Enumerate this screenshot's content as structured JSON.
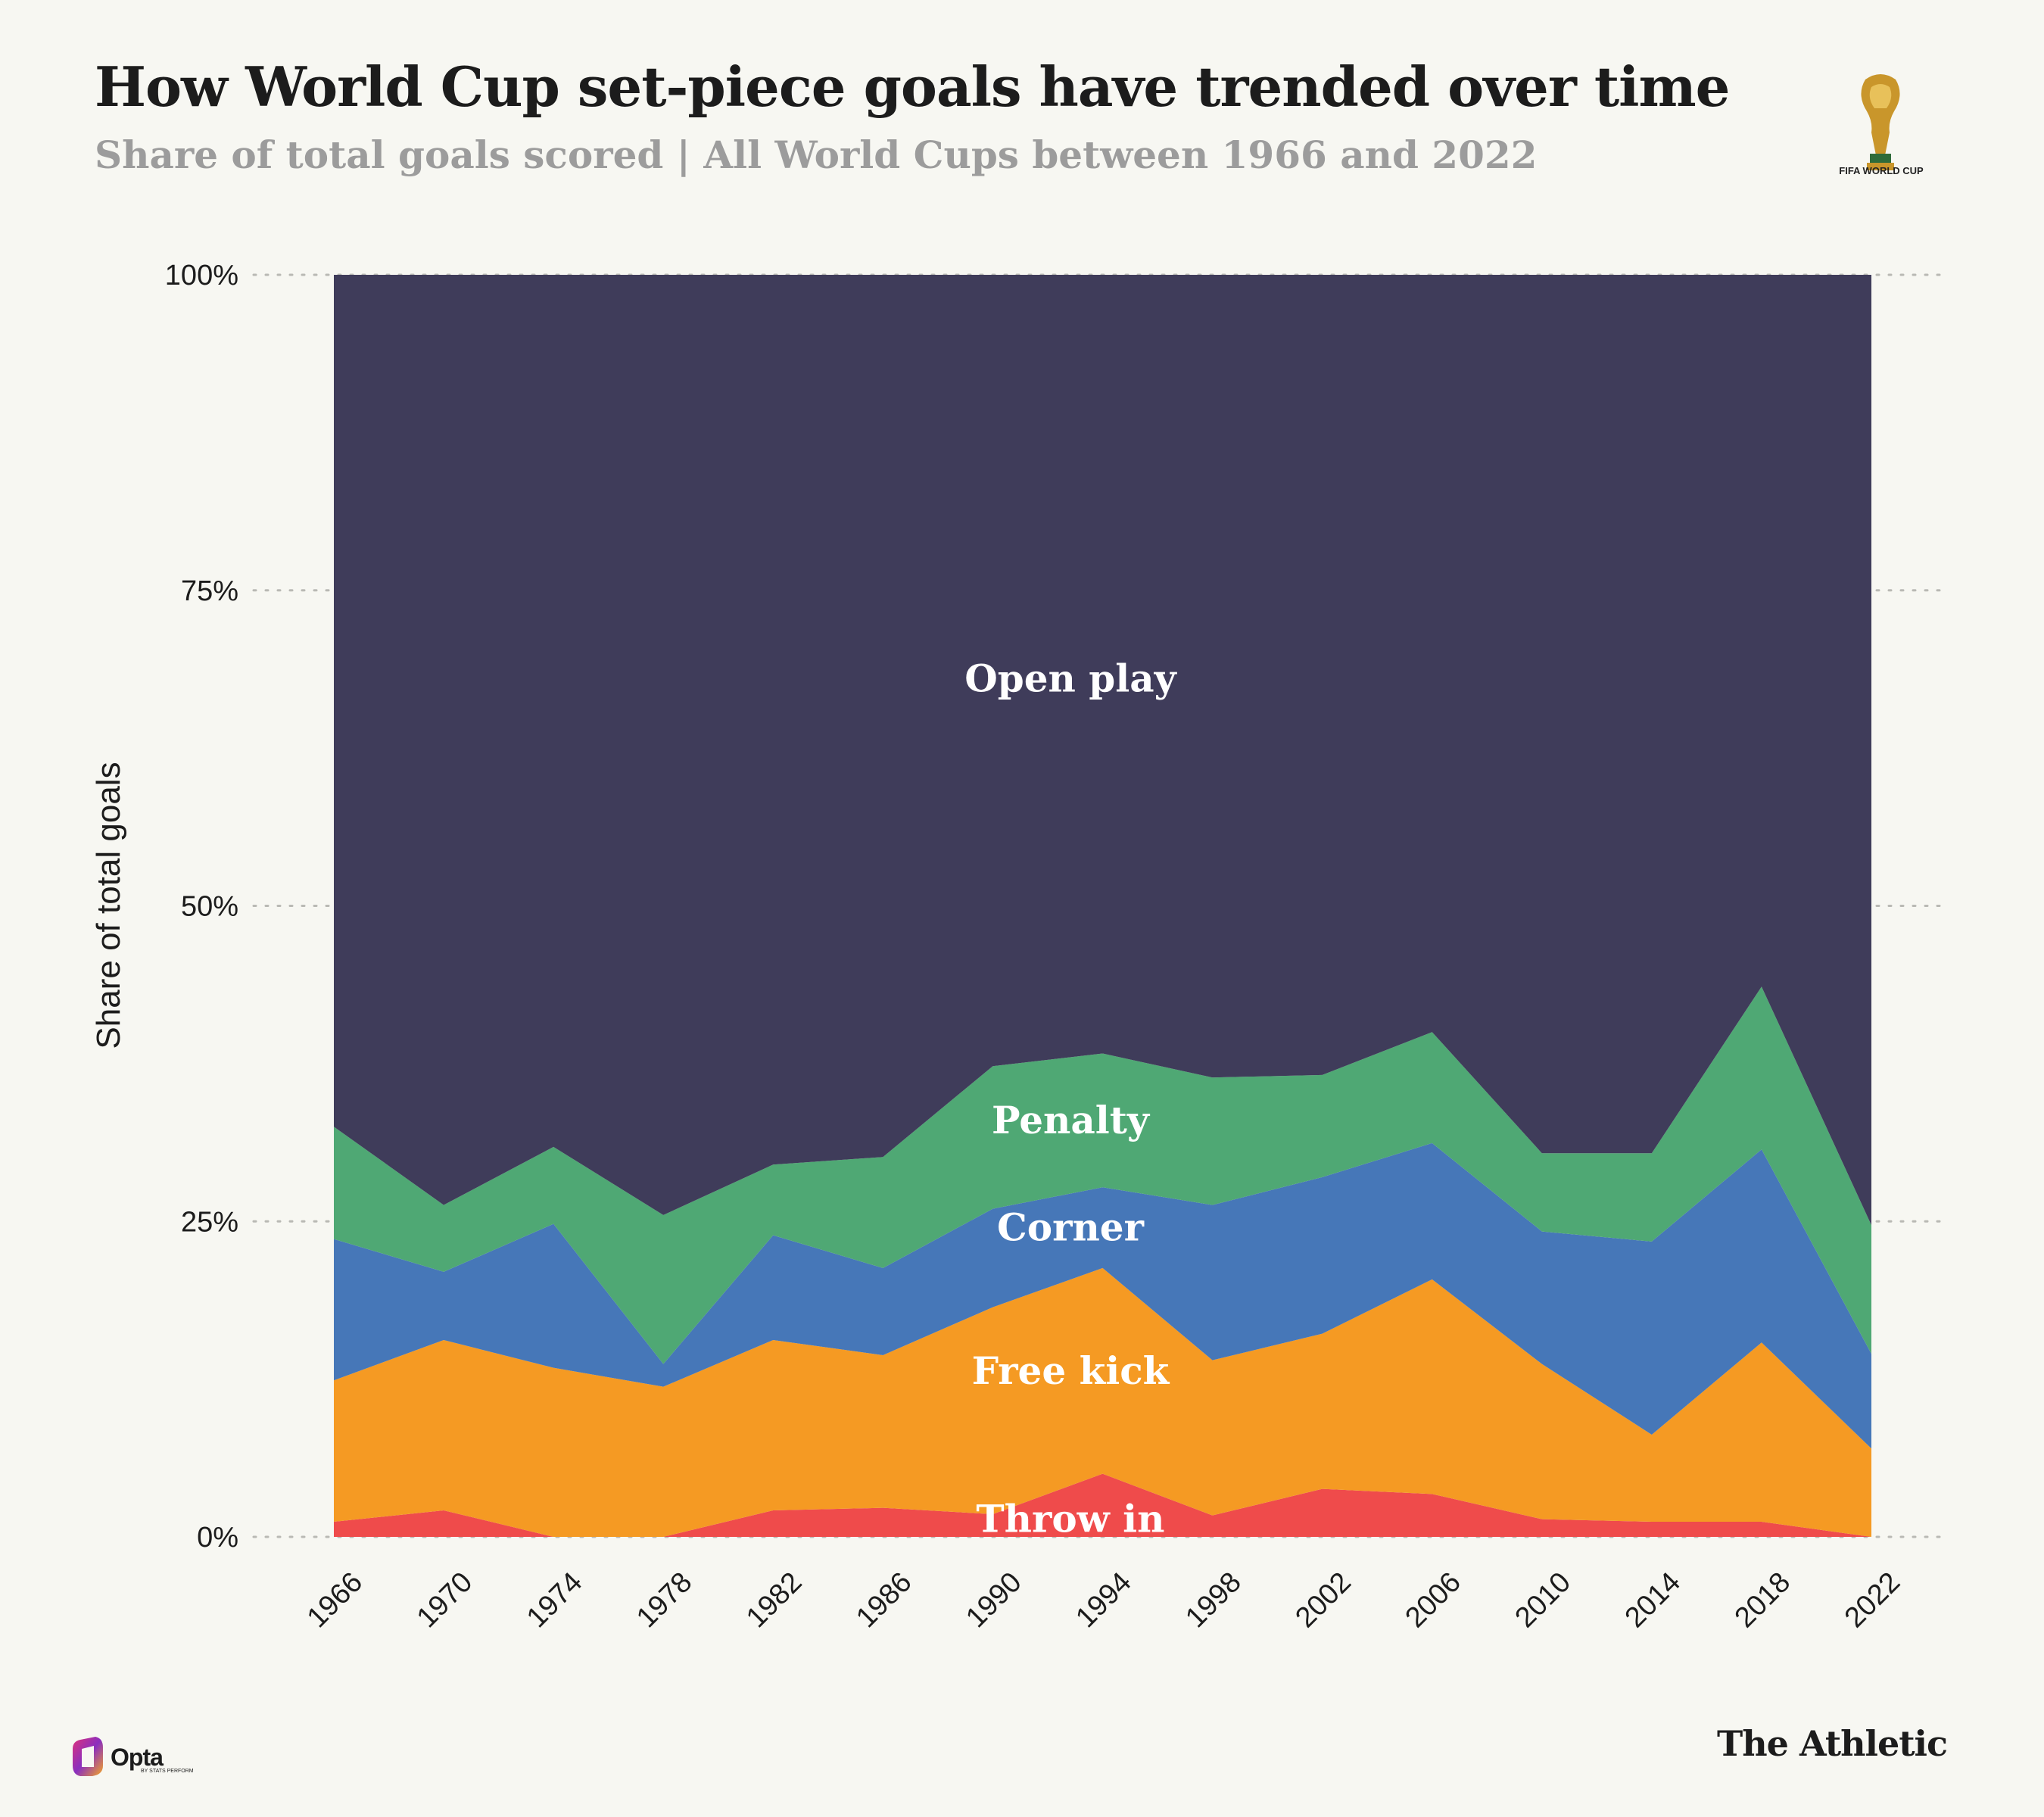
{
  "header": {
    "title": "How World Cup set-piece goals have trended over time",
    "subtitle": "Share of total goals scored | All World Cups between 1966 and 2022",
    "logo_label": "FIFA WORLD CUP"
  },
  "footer": {
    "source_logo": "Opta",
    "source_sub": "BY STATS PERFORM",
    "publisher": "The Athletic"
  },
  "chart_data": {
    "type": "area",
    "stacked": true,
    "ylabel": "Share of total goals",
    "ylim": [
      0,
      100
    ],
    "yticks": [
      0,
      25,
      50,
      75,
      100
    ],
    "ytick_labels": [
      "0%",
      "25%",
      "50%",
      "75%",
      "100%"
    ],
    "grid": "dotted horizontal",
    "legend": "inline labels",
    "x": [
      "1966",
      "1970",
      "1974",
      "1978",
      "1982",
      "1986",
      "1990",
      "1994",
      "1998",
      "2002",
      "2006",
      "2010",
      "2014",
      "2018",
      "2022"
    ],
    "series": [
      {
        "name": "Throw in",
        "color": "#ef4b4b",
        "values": [
          1.2,
          2.1,
          0,
          0,
          2.1,
          2.3,
          1.8,
          5.0,
          1.7,
          3.8,
          3.4,
          1.4,
          1.2,
          1.2,
          0
        ]
      },
      {
        "name": "Free kick",
        "color": "#f59a23",
        "values": [
          11.2,
          13.5,
          13.4,
          11.9,
          13.5,
          12.1,
          16.4,
          16.3,
          12.3,
          12.3,
          17.0,
          12.3,
          6.9,
          14.2,
          7.0
        ]
      },
      {
        "name": "Corner",
        "color": "#4677b8",
        "values": [
          11.2,
          5.4,
          11.4,
          1.8,
          8.3,
          6.9,
          7.8,
          6.4,
          12.3,
          12.4,
          10.8,
          10.5,
          15.3,
          15.3,
          7.5
        ]
      },
      {
        "name": "Penalty",
        "color": "#4fa874",
        "values": [
          8.9,
          5.3,
          6.1,
          11.8,
          5.6,
          8.8,
          11.3,
          10.6,
          10.1,
          8.1,
          8.8,
          6.2,
          7.0,
          12.9,
          10.2
        ]
      },
      {
        "name": "Open play",
        "color": "#3f3c5a",
        "values": [
          67.5,
          73.7,
          69.1,
          74.5,
          70.5,
          69.9,
          62.7,
          61.7,
          63.6,
          63.4,
          60.0,
          69.6,
          69.6,
          56.4,
          75.3
        ]
      }
    ]
  }
}
